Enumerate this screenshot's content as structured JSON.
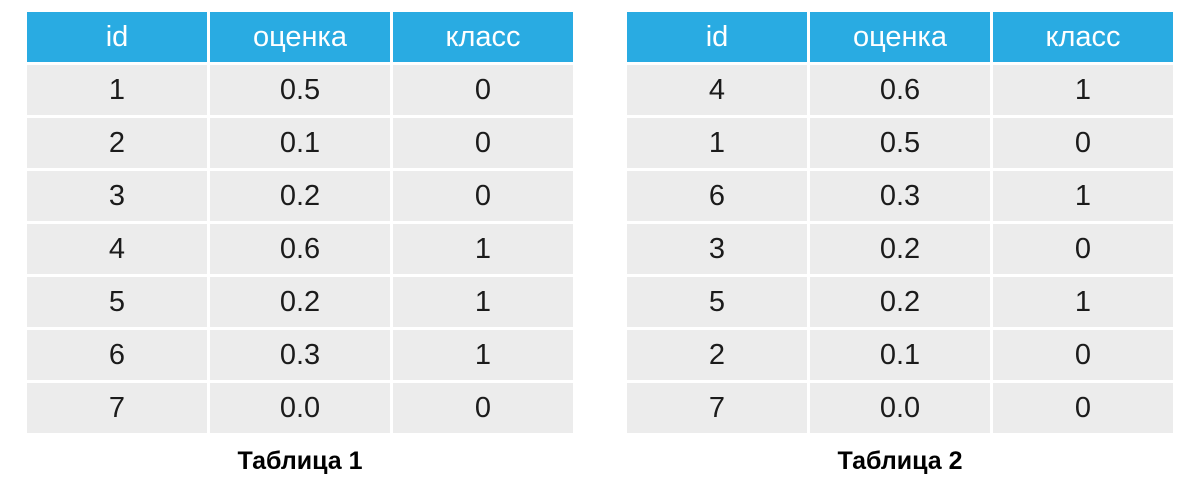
{
  "colors": {
    "page_bg": "#ffffff",
    "header_bg": "#29ABE2",
    "header_text": "#ffffff",
    "row_bg": "#ECECEC",
    "cell_text": "#1b1b1b",
    "caption_text": "#000000"
  },
  "tables": [
    {
      "caption": "Таблица 1",
      "columns": [
        "id",
        "оценка",
        "класс"
      ],
      "rows": [
        [
          "1",
          "0.5",
          "0"
        ],
        [
          "2",
          "0.1",
          "0"
        ],
        [
          "3",
          "0.2",
          "0"
        ],
        [
          "4",
          "0.6",
          "1"
        ],
        [
          "5",
          "0.2",
          "1"
        ],
        [
          "6",
          "0.3",
          "1"
        ],
        [
          "7",
          "0.0",
          "0"
        ]
      ]
    },
    {
      "caption": "Таблица 2",
      "columns": [
        "id",
        "оценка",
        "класс"
      ],
      "rows": [
        [
          "4",
          "0.6",
          "1"
        ],
        [
          "1",
          "0.5",
          "0"
        ],
        [
          "6",
          "0.3",
          "1"
        ],
        [
          "3",
          "0.2",
          "0"
        ],
        [
          "5",
          "0.2",
          "1"
        ],
        [
          "2",
          "0.1",
          "0"
        ],
        [
          "7",
          "0.0",
          "0"
        ]
      ]
    }
  ],
  "chart_data": [
    {
      "type": "table",
      "title": "Таблица 1",
      "columns": [
        "id",
        "оценка",
        "класс"
      ],
      "rows": [
        [
          1,
          0.5,
          0
        ],
        [
          2,
          0.1,
          0
        ],
        [
          3,
          0.2,
          0
        ],
        [
          4,
          0.6,
          1
        ],
        [
          5,
          0.2,
          1
        ],
        [
          6,
          0.3,
          1
        ],
        [
          7,
          0.0,
          0
        ]
      ]
    },
    {
      "type": "table",
      "title": "Таблица 2",
      "columns": [
        "id",
        "оценка",
        "класс"
      ],
      "rows": [
        [
          4,
          0.6,
          1
        ],
        [
          1,
          0.5,
          0
        ],
        [
          6,
          0.3,
          1
        ],
        [
          3,
          0.2,
          0
        ],
        [
          5,
          0.2,
          1
        ],
        [
          2,
          0.1,
          0
        ],
        [
          7,
          0.0,
          0
        ]
      ]
    }
  ]
}
